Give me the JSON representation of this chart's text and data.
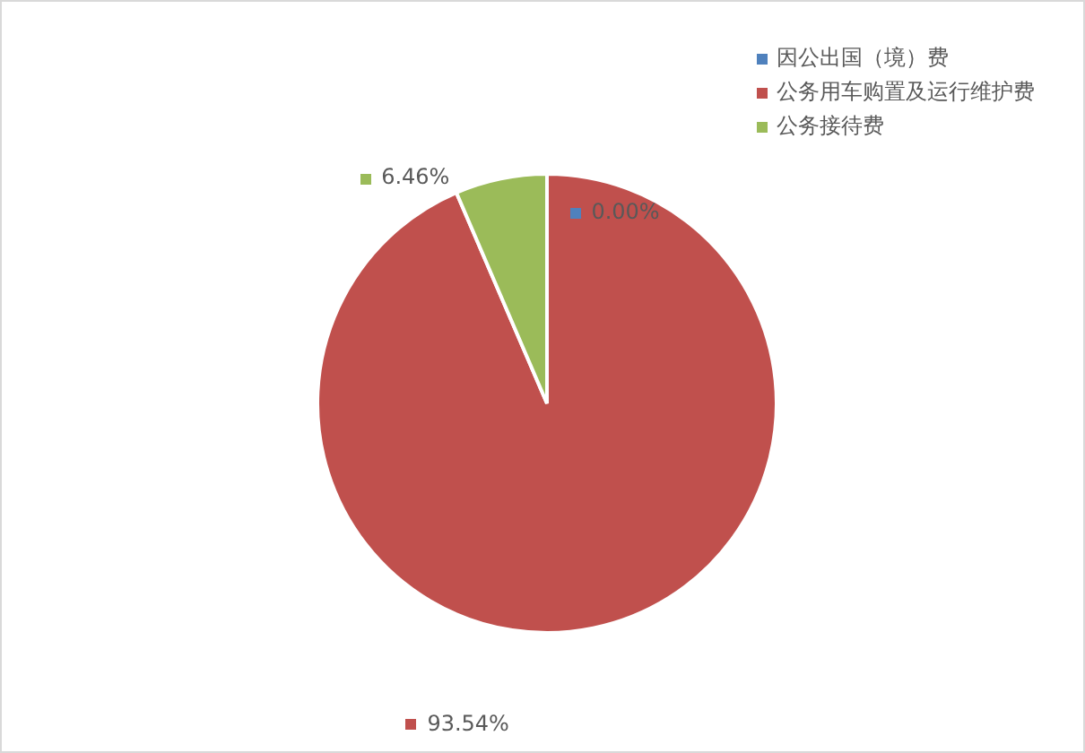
{
  "chart_data": {
    "type": "pie",
    "categories": [
      "因公出国（境）费",
      "公务用车购置及运行维护费",
      "公务接待费"
    ],
    "values": [
      0,
      93.54,
      6.46
    ],
    "colors": [
      "#4f81bd",
      "#c0504d",
      "#9bbb59"
    ],
    "value_labels": [
      "0.00%",
      "93.54%",
      "6.46%"
    ],
    "legend": "top right"
  }
}
